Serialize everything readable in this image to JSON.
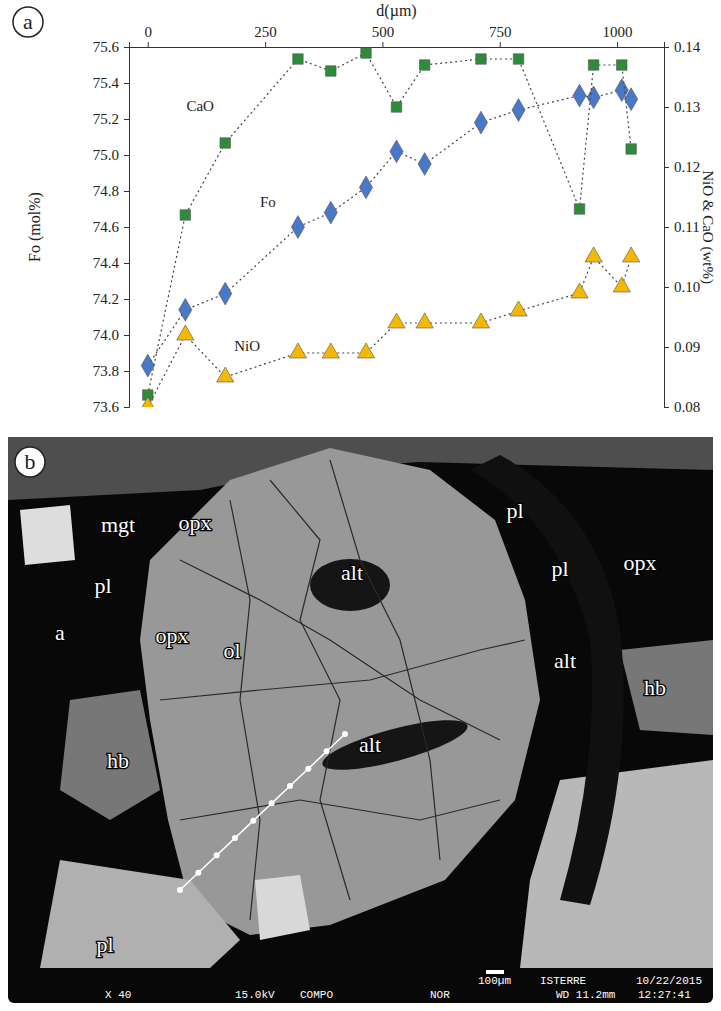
{
  "panels": [
    "a",
    "b"
  ],
  "chart_data": {
    "type": "line",
    "x_label": "d(µm)",
    "y_label": "Fo (mol%)",
    "y2_label": "NiO & CaO (wt%)",
    "x": [
      0,
      80,
      165,
      320,
      390,
      465,
      530,
      590,
      710,
      790,
      920,
      950,
      1010,
      1030
    ],
    "xlim": [
      -40,
      1100
    ],
    "xticks": [
      0,
      250,
      500,
      750,
      1000
    ],
    "ylim": [
      73.6,
      75.6
    ],
    "yticks": [
      73.6,
      73.8,
      {
        "value": 74,
        "label": "74.0"
      },
      74.2,
      74.4,
      74.6,
      74.8,
      {
        "value": 75,
        "label": "75.0"
      },
      75.2,
      75.4,
      75.6
    ],
    "y2lim": [
      0.08,
      0.14
    ],
    "y2ticks": [
      0.08,
      0.09,
      {
        "value": 0.1,
        "label": "0.10"
      },
      0.11,
      0.12,
      0.13,
      0.14
    ],
    "line_style": "dotted",
    "series": [
      {
        "name": "Fo",
        "color": "#4a78c8",
        "marker": "diamond",
        "values": [
          73.83,
          74.14,
          74.23,
          74.6,
          74.68,
          74.82,
          75.02,
          74.95,
          75.18,
          75.25,
          75.33,
          75.32,
          75.36,
          75.31
        ]
      },
      {
        "name": "CaO",
        "color": "#2e8b3a",
        "marker": "square",
        "axis": "y2",
        "values": [
          0.082,
          0.112,
          0.124,
          0.138,
          0.136,
          0.139,
          0.13,
          0.137,
          0.138,
          0.138,
          0.113,
          0.137,
          0.137,
          0.123
        ]
      },
      {
        "name": "NiO",
        "color": "#f5b800",
        "marker": "triangle",
        "axis": "y2",
        "values": [
          0.08,
          0.092,
          0.085,
          0.089,
          0.089,
          0.089,
          0.094,
          0.094,
          0.094,
          0.096,
          0.099,
          0.105,
          0.1,
          0.105
        ]
      }
    ]
  },
  "micrograph": {
    "labels": [
      "mgt",
      "opx",
      "pl",
      "pl",
      "pl",
      "opx",
      "a",
      "opx",
      "alt",
      "ol",
      "alt",
      "alt",
      "hb",
      "hb",
      "pl"
    ],
    "footer": [
      "100µm",
      "ISTERRE",
      "10/22/2015",
      "X 40",
      "15.0kV",
      "COMPO",
      "NOR",
      "WD 11.2mm",
      "12:27:41"
    ]
  }
}
